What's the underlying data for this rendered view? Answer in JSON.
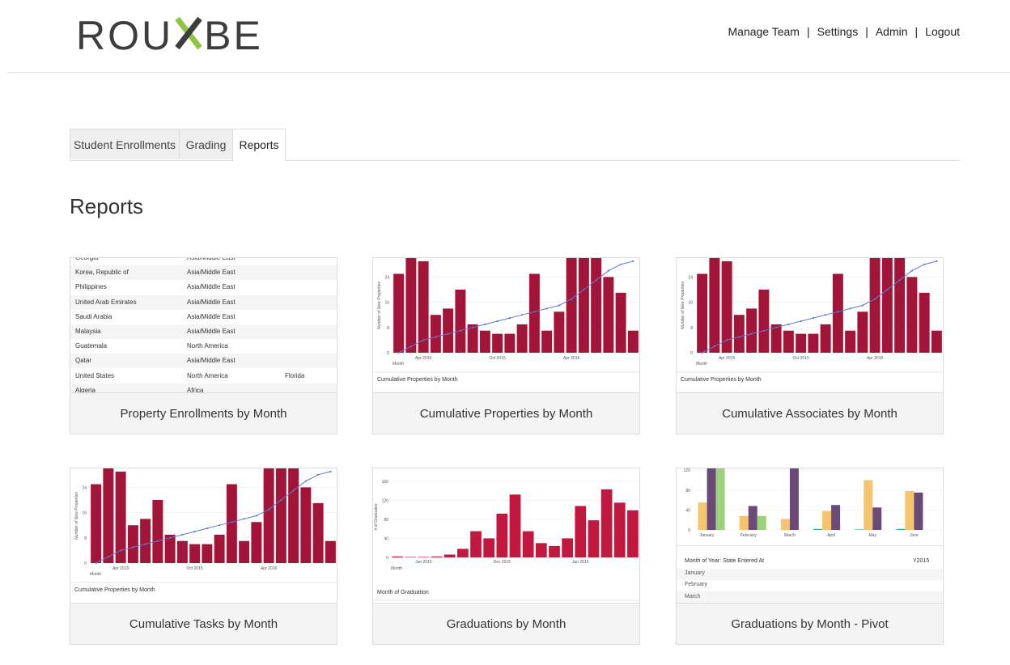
{
  "header": {
    "logo": "ROUXBE",
    "nav": [
      "Manage Team",
      "Settings",
      "Admin",
      "Logout"
    ],
    "nav_sep": "|"
  },
  "tabs": [
    "Student Enrollments",
    "Grading",
    "Reports"
  ],
  "page_title": "Reports",
  "colors": {
    "bar": "#a31538",
    "bar_bright": "#c2173f",
    "line": "#5b7bd5",
    "yellow": "#f5c46b",
    "purple": "#6b4a7a",
    "green": "#9bd27a",
    "teal": "#3aa8a3"
  },
  "cards": {
    "property_enrollments": {
      "caption": "Property Enrollments by Month",
      "rows": [
        {
          "country": "Georgia",
          "region": "Asia/Middle East",
          "state": ""
        },
        {
          "country": "Korea, Republic of",
          "region": "Asia/Middle East",
          "state": ""
        },
        {
          "country": "Philippines",
          "region": "Asia/Middle East",
          "state": ""
        },
        {
          "country": "United Arab Emirates",
          "region": "Asia/Middle East",
          "state": ""
        },
        {
          "country": "Saudi Arabia",
          "region": "Asia/Middle East",
          "state": ""
        },
        {
          "country": "Malaysia",
          "region": "Asia/Middle East",
          "state": ""
        },
        {
          "country": "Guatemala",
          "region": "North America",
          "state": ""
        },
        {
          "country": "Qatar",
          "region": "Asia/Middle East",
          "state": ""
        },
        {
          "country": "United States",
          "region": "North America",
          "state": "Florida"
        },
        {
          "country": "Algeria",
          "region": "Africa",
          "state": ""
        }
      ]
    },
    "cumulative_properties": {
      "caption": "Cumulative Properties by Month",
      "footer": "Cumulative Properties by Month"
    },
    "cumulative_associates": {
      "caption": "Cumulative Associates by Month",
      "footer": "Cumulative Properties by Month"
    },
    "cumulative_tasks": {
      "caption": "Cumulative Tasks by Month",
      "footer": "Cumulative Properties by Month"
    },
    "graduations": {
      "caption": "Graduations by Month",
      "footer": "Month of Graduation"
    },
    "graduations_pivot": {
      "caption": "Graduations by Month - Pivot",
      "table_header": [
        "Month of Year: State Entered At",
        "Y2015"
      ],
      "table_rows": [
        "January",
        "February",
        "March"
      ]
    }
  },
  "chart_data": [
    {
      "type": "bar",
      "title": "Cumulative Properties by Month",
      "ylabel": "Number of New Properties",
      "xlabel": "Month",
      "xticks": [
        "Apr 2015",
        "Oct 2015",
        "Apr 2016"
      ],
      "yticks": [
        0,
        8,
        16,
        24
      ],
      "ylim": [
        0,
        30
      ],
      "values": [
        25,
        30,
        29,
        12,
        14,
        20,
        9,
        7,
        6,
        6,
        9,
        25,
        7,
        13,
        30,
        30,
        30,
        24,
        19,
        7
      ],
      "line": [
        0,
        2,
        4,
        5,
        6,
        7,
        8,
        9,
        10,
        11,
        12,
        13,
        14,
        15,
        17,
        20,
        23,
        26,
        28,
        29
      ]
    },
    {
      "type": "bar",
      "title": "Graduations by Month",
      "ylabel": "# of Graduates",
      "xlabel": "Month",
      "xticks": [
        "Jun 2015",
        "Dec 2015",
        "Jun 2016"
      ],
      "yticks": [
        0,
        40,
        80,
        120,
        160
      ],
      "ylim": [
        0,
        170
      ],
      "values": [
        2,
        1,
        1,
        2,
        6,
        18,
        55,
        40,
        92,
        132,
        55,
        30,
        24,
        40,
        108,
        78,
        143,
        115,
        99
      ]
    },
    {
      "type": "bar",
      "title": "Graduations by Month - Pivot",
      "categories": [
        "January",
        "February",
        "March",
        "April",
        "May",
        "June"
      ],
      "yticks": [
        0,
        40,
        80,
        120
      ],
      "ylim": [
        0,
        130
      ],
      "series": [
        {
          "values": [
            0,
            0,
            0,
            2,
            1,
            2
          ]
        },
        {
          "values": [
            55,
            28,
            22,
            38,
            100,
            78
          ]
        },
        {
          "values": [
            130,
            48,
            130,
            50,
            45,
            75
          ]
        },
        {
          "values": [
            130,
            28,
            0,
            0,
            0,
            0
          ]
        }
      ]
    }
  ]
}
